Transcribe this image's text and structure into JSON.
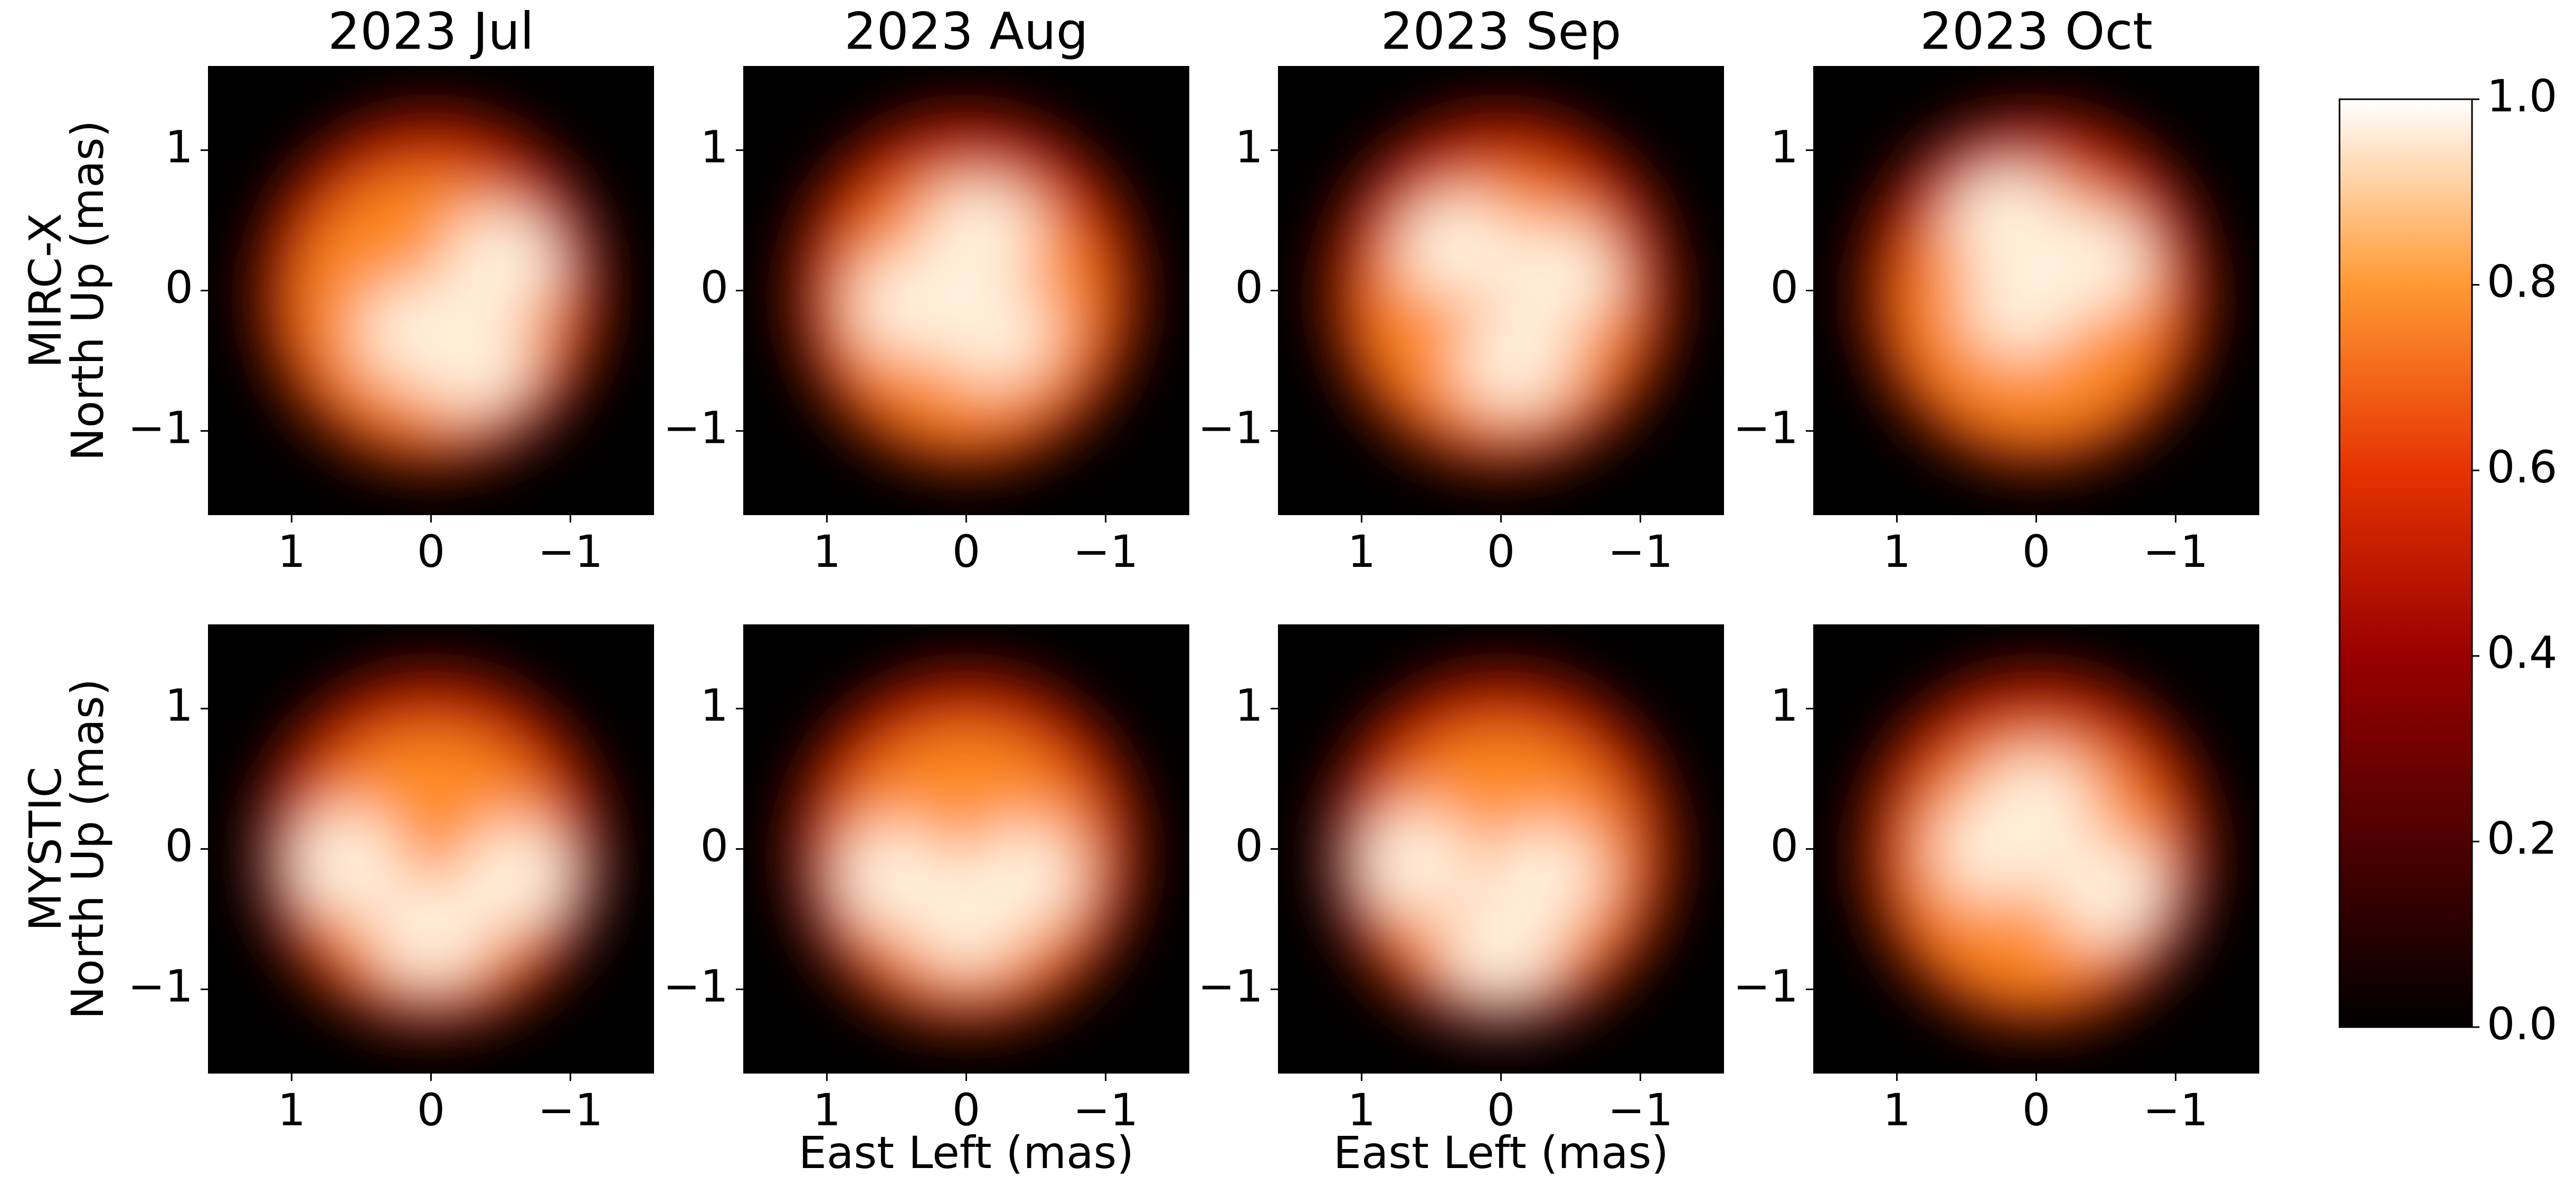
{
  "chart_data": [
    {
      "type": "image",
      "title": "2023 Jul",
      "ylabel": [
        "MIRC-X",
        "North Up (mas)"
      ],
      "xlim": [
        1.6,
        -1.6
      ],
      "ylim": [
        -1.6,
        1.6
      ],
      "xticks": [
        1,
        0,
        {
          "value": -1,
          "label": "−1"
        }
      ],
      "yticks": [
        {
          "value": -1,
          "label": "−1"
        },
        0,
        1
      ]
    },
    {
      "type": "image",
      "title": "2023 Aug",
      "xlim": [
        1.6,
        -1.6
      ],
      "ylim": [
        -1.6,
        1.6
      ],
      "xticks": [
        1,
        0,
        {
          "value": -1,
          "label": "−1"
        }
      ],
      "yticks": [
        {
          "value": -1,
          "label": "−1"
        },
        0,
        1
      ]
    },
    {
      "type": "image",
      "title": "2023 Sep",
      "xlim": [
        1.6,
        -1.6
      ],
      "ylim": [
        -1.6,
        1.6
      ],
      "xticks": [
        1,
        0,
        {
          "value": -1,
          "label": "−1"
        }
      ],
      "yticks": [
        {
          "value": -1,
          "label": "−1"
        },
        0,
        1
      ]
    },
    {
      "type": "image",
      "title": "2023 Oct",
      "xlim": [
        1.6,
        -1.6
      ],
      "ylim": [
        -1.6,
        1.6
      ],
      "xticks": [
        1,
        0,
        {
          "value": -1,
          "label": "−1"
        }
      ],
      "yticks": [
        {
          "value": -1,
          "label": "−1"
        },
        0,
        1
      ]
    },
    {
      "type": "image",
      "ylabel": [
        "MYSTIC",
        "North Up (mas)"
      ],
      "xlim": [
        1.6,
        -1.6
      ],
      "ylim": [
        -1.6,
        1.6
      ],
      "xticks": [
        1,
        0,
        {
          "value": -1,
          "label": "−1"
        }
      ],
      "yticks": [
        {
          "value": -1,
          "label": "−1"
        },
        0,
        1
      ]
    },
    {
      "type": "image",
      "xlabel": "East Left (mas)",
      "xlim": [
        1.6,
        -1.6
      ],
      "ylim": [
        -1.6,
        1.6
      ],
      "xticks": [
        1,
        0,
        {
          "value": -1,
          "label": "−1"
        }
      ],
      "yticks": [
        {
          "value": -1,
          "label": "−1"
        },
        0,
        1
      ]
    },
    {
      "type": "image",
      "xlabel": "East Left (mas)",
      "xlim": [
        1.6,
        -1.6
      ],
      "ylim": [
        -1.6,
        1.6
      ],
      "xticks": [
        1,
        0,
        {
          "value": -1,
          "label": "−1"
        }
      ],
      "yticks": [
        {
          "value": -1,
          "label": "−1"
        },
        0,
        1
      ]
    },
    {
      "type": "image",
      "xlim": [
        1.6,
        -1.6
      ],
      "ylim": [
        -1.6,
        1.6
      ],
      "xticks": [
        1,
        0,
        {
          "value": -1,
          "label": "−1"
        }
      ],
      "yticks": [
        {
          "value": -1,
          "label": "−1"
        },
        0,
        1
      ]
    },
    {
      "type": "colorbar",
      "ylim": [
        0,
        1
      ],
      "yticks": [
        {
          "value": 0,
          "label": "0.0"
        },
        0.2,
        0.4,
        0.6,
        0.8,
        {
          "value": 1,
          "label": "1.0"
        }
      ]
    }
  ]
}
